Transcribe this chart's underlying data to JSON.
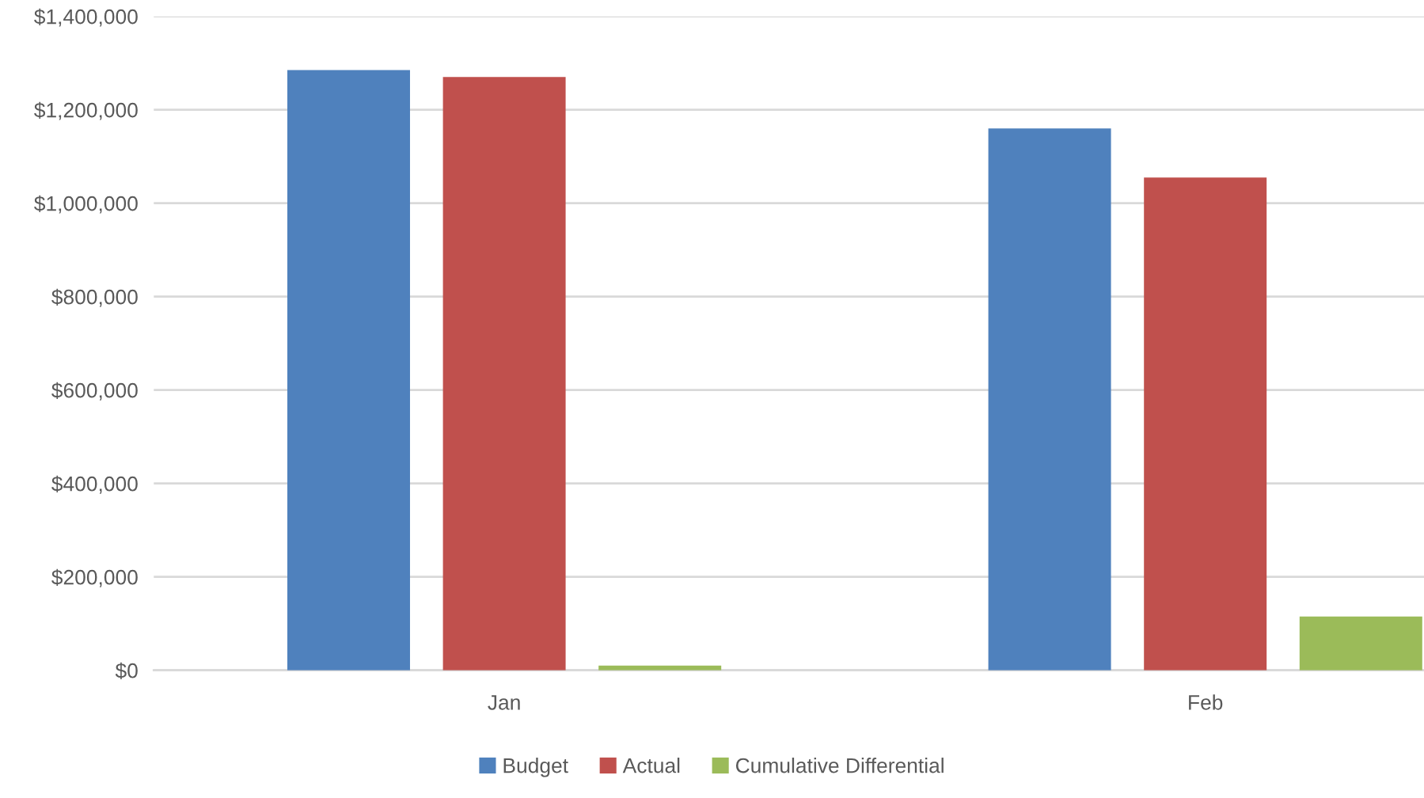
{
  "chart_data": {
    "type": "bar",
    "categories": [
      "Jan",
      "Feb"
    ],
    "series": [
      {
        "name": "Budget",
        "color": "#4f81bd",
        "values": [
          1285000,
          1160000
        ]
      },
      {
        "name": "Actual",
        "color": "#c0504d",
        "values": [
          1270000,
          1055000
        ]
      },
      {
        "name": "Cumulative Differential",
        "color": "#9bbb59",
        "values": [
          10000,
          115000
        ]
      }
    ],
    "ylim": [
      0,
      1400000
    ],
    "yticks": [
      {
        "value": 0,
        "label": "$0"
      },
      {
        "value": 200000,
        "label": "$200,000"
      },
      {
        "value": 400000,
        "label": "$400,000"
      },
      {
        "value": 600000,
        "label": "$600,000"
      },
      {
        "value": 800000,
        "label": "$800,000"
      },
      {
        "value": 1000000,
        "label": "$1,000,000"
      },
      {
        "value": 1200000,
        "label": "$1,200,000"
      },
      {
        "value": 1400000,
        "label": "$1,400,000"
      }
    ],
    "grid": "y",
    "legend": "bottom"
  }
}
